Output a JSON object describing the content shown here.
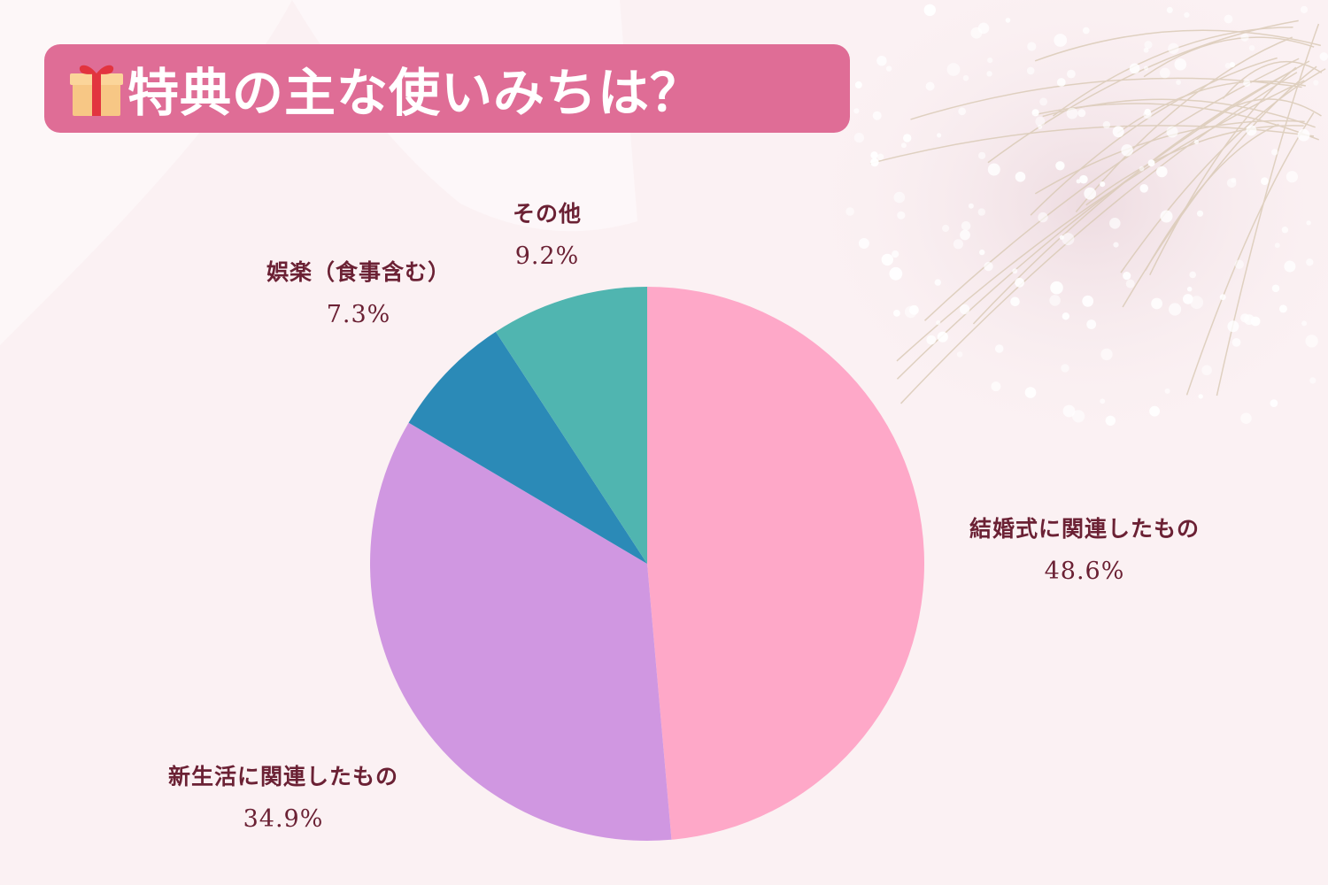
{
  "title": "特典の主な使いみちは？",
  "colors": {
    "banner": "#df6d96",
    "label_text": "#6b2134",
    "slices": [
      "#fea8c8",
      "#d097e1",
      "#2b8ab7",
      "#50b5b0"
    ]
  },
  "chart_data": {
    "type": "pie",
    "categories": [
      "結婚式に関連したもの",
      "新生活に関連したもの",
      "娯楽（食事含む）",
      "その他"
    ],
    "values": [
      48.6,
      34.9,
      7.3,
      9.2
    ],
    "value_labels": [
      "48.6%",
      "34.9%",
      "7.3%",
      "9.2%"
    ],
    "start": "12 o'clock",
    "direction": "clockwise"
  }
}
